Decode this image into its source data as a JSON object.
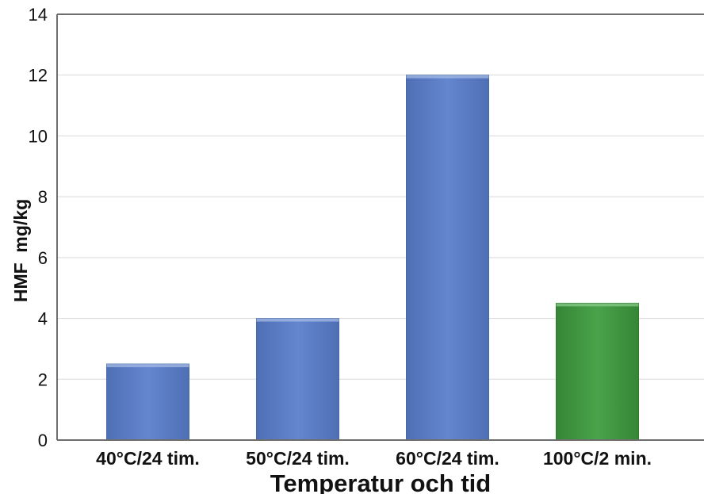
{
  "chart_data": {
    "type": "bar",
    "categories": [
      "40°C/24 tim.",
      "50°C/24 tim.",
      "60°C/24 tim.",
      "100°C/2 min."
    ],
    "values": [
      2.5,
      4.0,
      12.0,
      4.5
    ],
    "xlabel": "Temperatur och tid",
    "ylabel": "HMF  mg/kg",
    "ylim": [
      0,
      14
    ],
    "yticks": [
      0,
      2,
      4,
      6,
      8,
      10,
      12,
      14
    ],
    "grid": true,
    "colors": {
      "default_bar": "#5a7cc4",
      "highlight_bar": "#3f9640",
      "highlight_category": "100°C/2 min."
    }
  }
}
